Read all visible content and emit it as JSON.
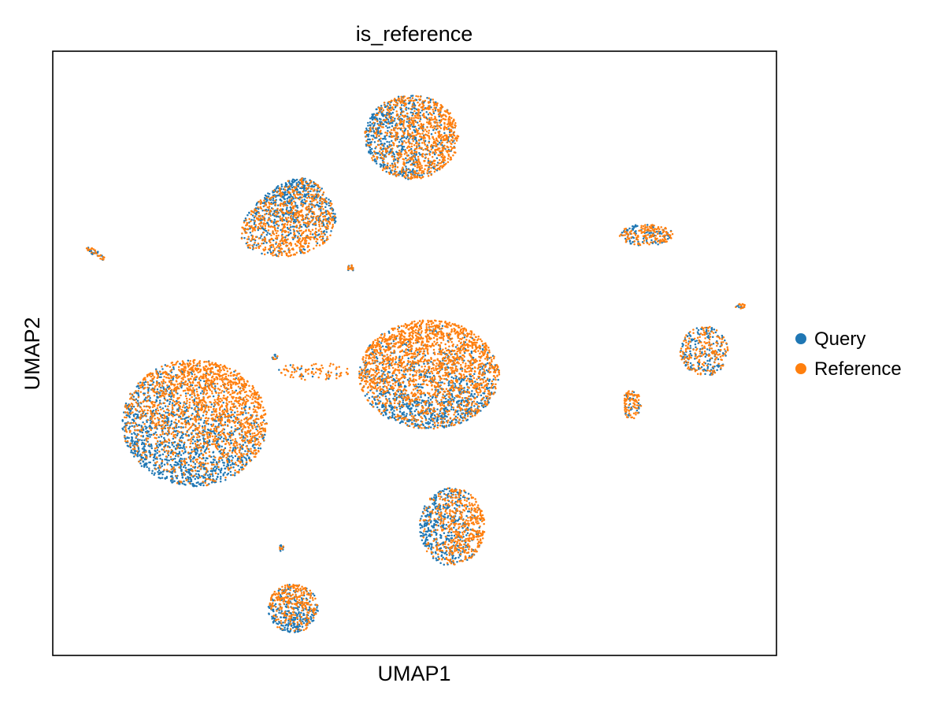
{
  "chart_data": {
    "type": "scatter",
    "title": "is_reference",
    "xlabel": "UMAP1",
    "ylabel": "UMAP2",
    "x_ticks": [],
    "y_ticks": [],
    "xlim": [
      0,
      1
    ],
    "ylim": [
      0,
      1
    ],
    "grid": false,
    "legend_position": "right",
    "series": [
      {
        "name": "Query",
        "color": "#1f77b4"
      },
      {
        "name": "Reference",
        "color": "#ff7f0e"
      }
    ],
    "clusters": [
      {
        "cx": 0.496,
        "cy": 0.858,
        "rx": 0.065,
        "ry": 0.07,
        "n": 1500,
        "query_fraction": 0.4,
        "query_side": "left"
      },
      {
        "cx": 0.315,
        "cy": 0.725,
        "rx": 0.08,
        "ry": 0.065,
        "n": 1300,
        "query_fraction": 0.45,
        "query_side": "top",
        "shape": "triangle"
      },
      {
        "cx": 0.196,
        "cy": 0.385,
        "rx": 0.1,
        "ry": 0.105,
        "n": 3000,
        "query_fraction": 0.45,
        "query_side": "bottom-left"
      },
      {
        "cx": 0.52,
        "cy": 0.465,
        "rx": 0.097,
        "ry": 0.09,
        "n": 2800,
        "query_fraction": 0.35,
        "query_side": "bottom"
      },
      {
        "cx": 0.552,
        "cy": 0.213,
        "rx": 0.045,
        "ry": 0.065,
        "n": 900,
        "query_fraction": 0.45,
        "query_side": "left"
      },
      {
        "cx": 0.332,
        "cy": 0.078,
        "rx": 0.035,
        "ry": 0.04,
        "n": 550,
        "query_fraction": 0.5,
        "query_side": "bottom"
      },
      {
        "cx": 0.9,
        "cy": 0.503,
        "rx": 0.033,
        "ry": 0.042,
        "n": 350,
        "query_fraction": 0.5,
        "query_side": "center"
      },
      {
        "cx": 0.82,
        "cy": 0.696,
        "rx": 0.037,
        "ry": 0.018,
        "n": 240,
        "query_fraction": 0.4,
        "query_side": "center"
      },
      {
        "cx": 0.8,
        "cy": 0.415,
        "rx": 0.013,
        "ry": 0.024,
        "n": 110,
        "query_fraction": 0.25,
        "query_side": "center"
      },
      {
        "cx": 0.06,
        "cy": 0.665,
        "rx": 0.018,
        "ry": 0.004,
        "n": 45,
        "query_fraction": 0.5,
        "query_side": "center",
        "rotation": -38
      },
      {
        "cx": 0.412,
        "cy": 0.641,
        "rx": 0.005,
        "ry": 0.005,
        "n": 20,
        "query_fraction": 0.6,
        "query_side": "center"
      },
      {
        "cx": 0.95,
        "cy": 0.578,
        "rx": 0.007,
        "ry": 0.004,
        "n": 20,
        "query_fraction": 0.5,
        "query_side": "center"
      },
      {
        "cx": 0.316,
        "cy": 0.179,
        "rx": 0.003,
        "ry": 0.008,
        "n": 15,
        "query_fraction": 0.6,
        "query_side": "center"
      },
      {
        "cx": 0.307,
        "cy": 0.494,
        "rx": 0.004,
        "ry": 0.005,
        "n": 10,
        "query_fraction": 0.6,
        "query_side": "center"
      },
      {
        "cx": 0.36,
        "cy": 0.47,
        "rx": 0.05,
        "ry": 0.015,
        "n": 90,
        "query_fraction": 0.1,
        "query_side": "center"
      }
    ]
  }
}
